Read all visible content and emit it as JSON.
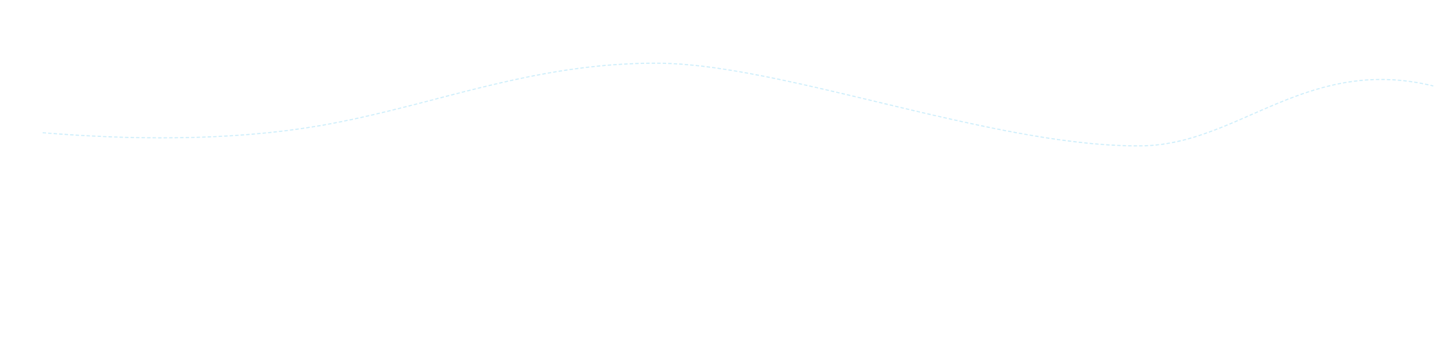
{
  "background_color": "#ffffff",
  "wave": {
    "stroke_color": "#cdeefb",
    "style": "dashed"
  }
}
